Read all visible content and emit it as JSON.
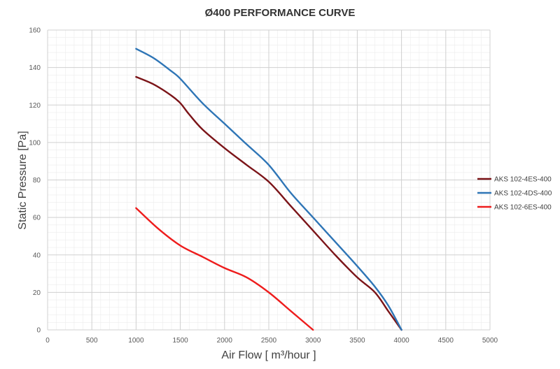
{
  "chart_data": {
    "type": "line",
    "title": "Ø400 PERFORMANCE CURVE",
    "xlabel": "Air Flow [ m³/hour ]",
    "ylabel": "Static Pressure [Pa]",
    "xlim": [
      0,
      5000
    ],
    "ylim": [
      0,
      160
    ],
    "xticks": [
      0,
      500,
      1000,
      1500,
      2000,
      2500,
      3000,
      3500,
      4000,
      4500,
      5000
    ],
    "yticks": [
      0,
      20,
      40,
      60,
      80,
      100,
      120,
      140,
      160
    ],
    "xtick_labels": [
      "0",
      "500",
      "1000",
      "1500",
      "2000",
      "2500",
      "3000",
      "3500",
      "4000",
      "4500",
      "5000"
    ],
    "ytick_labels": [
      "0",
      "20",
      "40",
      "60",
      "80",
      "100",
      "120",
      "140",
      "160"
    ],
    "grid": true,
    "legend_position": "right",
    "series": [
      {
        "name": "AKS 102-4ES-400",
        "color": "#7b1418",
        "x": [
          1000,
          1200,
          1400,
          1500,
          1600,
          1750,
          2000,
          2250,
          2500,
          2750,
          3000,
          3250,
          3500,
          3700,
          3850,
          4000
        ],
        "y": [
          135,
          131,
          125,
          121,
          115,
          107,
          97,
          88,
          79,
          66,
          53,
          40,
          28,
          20,
          10,
          0
        ]
      },
      {
        "name": "AKS 102-4DS-400",
        "color": "#2e75b6",
        "x": [
          1000,
          1200,
          1400,
          1500,
          1750,
          2000,
          2250,
          2500,
          2750,
          3000,
          3250,
          3500,
          3700,
          3850,
          4000
        ],
        "y": [
          150,
          145,
          138,
          134,
          121,
          110,
          99,
          88,
          73,
          60,
          47,
          34,
          23,
          13,
          0
        ]
      },
      {
        "name": "AKS 102-6ES-400",
        "color": "#ee1c1c",
        "x": [
          1000,
          1250,
          1500,
          1750,
          2000,
          2250,
          2500,
          2750,
          3000
        ],
        "y": [
          65,
          54,
          45,
          39,
          33,
          28,
          20,
          10,
          0
        ]
      }
    ]
  }
}
